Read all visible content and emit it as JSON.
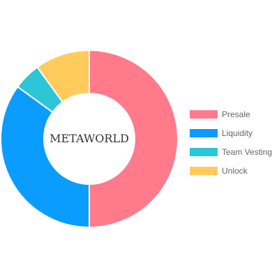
{
  "chart_data": {
    "type": "pie",
    "variant": "doughnut",
    "center_text": "METAWORLD",
    "categories": [
      "Presale",
      "Liquidity",
      "Team Vesting",
      "Unlock"
    ],
    "values": [
      50,
      35,
      5,
      10
    ],
    "unit": "percent",
    "colors": [
      "#ff7a8a",
      "#0a9cff",
      "#2dc6d6",
      "#ffcc5c"
    ],
    "legend_position": "right",
    "start_angle_deg": 0,
    "direction": "clockwise",
    "slice_border_color": "#ffffff"
  }
}
